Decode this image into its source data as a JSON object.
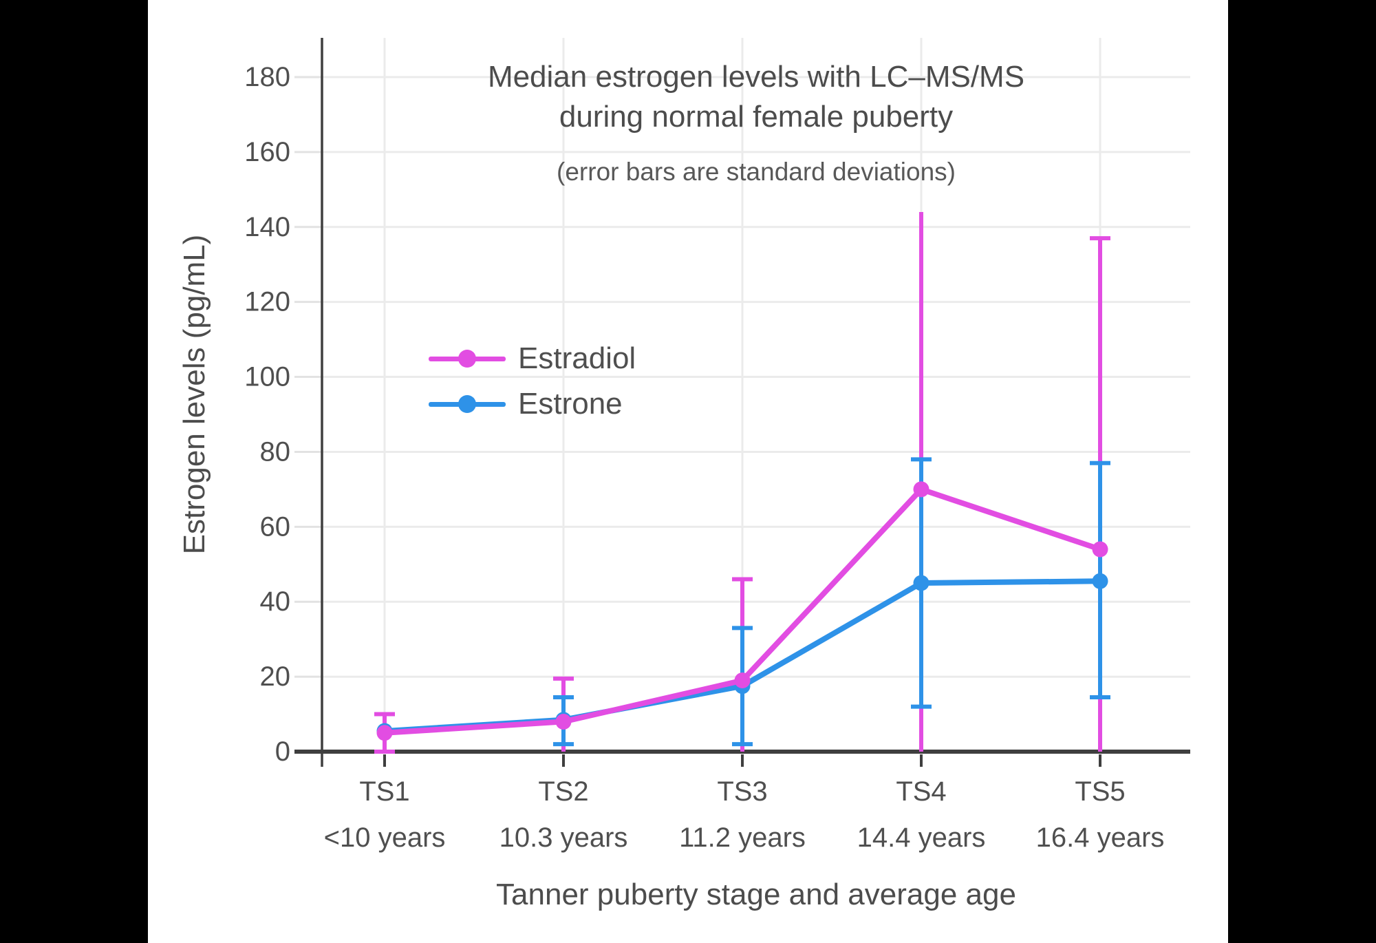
{
  "page": {
    "background": "#000000",
    "canvas_background": "#ffffff"
  },
  "chart_data": {
    "type": "line",
    "title": "Median estrogen levels with LC–MS/MS during normal female puberty",
    "title_lines": [
      "Median estrogen levels with LC–MS/MS",
      "during normal female puberty"
    ],
    "subtitle": "(error bars are standard deviations)",
    "xlabel": "Tanner puberty stage and average age",
    "ylabel": "Estrogen levels (pg/mL)",
    "categories": [
      "TS1",
      "TS2",
      "TS3",
      "TS4",
      "TS5"
    ],
    "category_ages": [
      "<10 years",
      "10.3 years",
      "11.2 years",
      "14.4 years",
      "16.4 years"
    ],
    "yticks": [
      0,
      20,
      40,
      60,
      80,
      100,
      120,
      140,
      160,
      180
    ],
    "ylim": [
      0,
      190
    ],
    "grid": true,
    "legend_position": "inside-upper-left",
    "error_bar_meaning": "standard deviations",
    "series": [
      {
        "name": "Estradiol",
        "color": "#E24DE2",
        "values": [
          5,
          8,
          19,
          70,
          54
        ],
        "error_top": [
          10,
          19.5,
          46,
          144,
          137
        ],
        "error_bottom": [
          0,
          0,
          0,
          0,
          0
        ],
        "error_top_cap": [
          true,
          true,
          true,
          false,
          true
        ],
        "error_bottom_cap": [
          true,
          false,
          false,
          false,
          false
        ]
      },
      {
        "name": "Estrone",
        "color": "#2E92E8",
        "values": [
          5.5,
          8.5,
          17.5,
          45,
          45.5
        ],
        "error_top": [
          null,
          14.5,
          33,
          78,
          77
        ],
        "error_bottom": [
          null,
          2,
          2,
          12,
          14.5
        ],
        "error_top_cap": [
          true,
          true,
          true,
          true,
          true
        ],
        "error_bottom_cap": [
          true,
          true,
          true,
          true,
          true
        ]
      }
    ],
    "colors": {
      "axis": "#3f3f3f",
      "grid": "#ebebeb",
      "tick_mark": "#e2e2e2",
      "text": "#4f4f4f"
    }
  }
}
